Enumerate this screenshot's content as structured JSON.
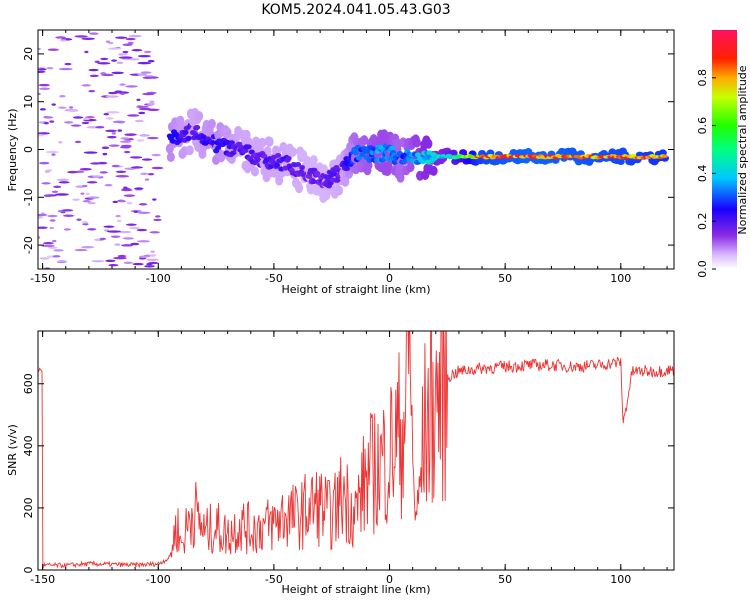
{
  "title": "KOM5.2024.041.05.43.G03",
  "chart_data": [
    {
      "type": "heatmap",
      "xlabel": "Height of straight line (km)",
      "ylabel": "Frequency (Hz)",
      "xlim": [
        -152,
        123
      ],
      "ylim": [
        -25,
        25
      ],
      "xticks": [
        -150,
        -100,
        -50,
        0,
        50,
        100
      ],
      "yticks": [
        -20,
        -10,
        0,
        10,
        20
      ],
      "colorbar": {
        "label": "Normalized spectral amplitude",
        "range": [
          0,
          1
        ],
        "ticks": [
          "0.0",
          "0.2",
          "0.4",
          "0.6",
          "0.8"
        ]
      },
      "ridge": [
        {
          "x": -95,
          "f": 2,
          "amp": 0.25
        },
        {
          "x": -85,
          "f": 4,
          "amp": 0.2
        },
        {
          "x": -75,
          "f": 1,
          "amp": 0.25
        },
        {
          "x": -65,
          "f": 0,
          "amp": 0.2
        },
        {
          "x": -55,
          "f": -2,
          "amp": 0.2
        },
        {
          "x": -45,
          "f": -3,
          "amp": 0.2
        },
        {
          "x": -35,
          "f": -5,
          "amp": 0.18
        },
        {
          "x": -28,
          "f": -7,
          "amp": 0.18
        },
        {
          "x": -20,
          "f": -4,
          "amp": 0.2
        },
        {
          "x": -15,
          "f": -1,
          "amp": 0.3
        },
        {
          "x": -5,
          "f": -1,
          "amp": 0.35
        },
        {
          "x": 0,
          "f": -0.5,
          "amp": 0.35
        },
        {
          "x": 5,
          "f": -2,
          "amp": 0.3
        },
        {
          "x": 15,
          "f": -1.5,
          "amp": 0.4
        },
        {
          "x": 25,
          "f": -1.5,
          "amp": 0.45
        },
        {
          "x": 40,
          "f": -1.5,
          "amp": 0.85
        },
        {
          "x": 60,
          "f": -1.5,
          "amp": 0.9
        },
        {
          "x": 80,
          "f": -1.5,
          "amp": 0.88
        },
        {
          "x": 100,
          "f": -1.5,
          "amp": 0.85
        },
        {
          "x": 120,
          "f": -1.5,
          "amp": 0.8
        }
      ]
    },
    {
      "type": "line",
      "xlabel": "Height of straight line (km)",
      "ylabel": "SNR (v/v)",
      "xlim": [
        -152,
        123
      ],
      "ylim": [
        0,
        770
      ],
      "xticks": [
        -150,
        -100,
        -50,
        0,
        50,
        100
      ],
      "yticks": [
        0,
        200,
        400,
        600
      ],
      "color": "#ee3333",
      "series": [
        {
          "x": [
            -150,
            -140,
            -130,
            -120,
            -110,
            -100,
            -95,
            -92,
            -90,
            -85,
            -80,
            -75,
            -70,
            -65,
            -60,
            -55,
            -50,
            -45,
            -40,
            -35,
            -30,
            -25,
            -20,
            -15,
            -10,
            -5,
            0,
            3,
            6,
            9,
            10,
            12,
            15,
            20,
            25,
            30,
            40,
            50,
            60,
            70,
            80,
            90,
            95,
            100,
            101,
            105,
            110,
            115,
            123
          ],
          "y": [
            15,
            15,
            20,
            18,
            16,
            20,
            40,
            150,
            80,
            200,
            120,
            140,
            110,
            150,
            130,
            140,
            150,
            180,
            170,
            200,
            210,
            170,
            250,
            180,
            300,
            330,
            380,
            420,
            470,
            770,
            300,
            160,
            450,
            550,
            620,
            640,
            650,
            655,
            660,
            660,
            655,
            660,
            665,
            670,
            470,
            640,
            640,
            640,
            645
          ]
        }
      ]
    }
  ]
}
